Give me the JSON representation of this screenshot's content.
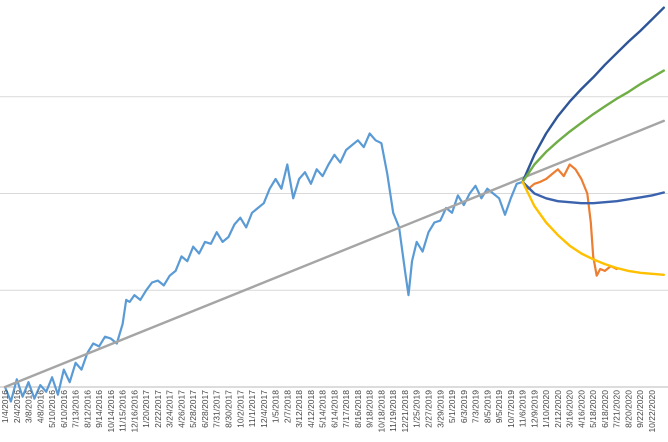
{
  "chart_data": {
    "type": "line",
    "title": "",
    "xlabel": "",
    "ylabel": "",
    "grid": true,
    "legend": "none",
    "x_tick_labels": [
      "1/4/2016",
      "2/4/2016",
      "3/8/2016",
      "4/8/2016",
      "5/10/2016",
      "6/10/2016",
      "7/13/2016",
      "8/12/2016",
      "9/14/2016",
      "10/14/2016",
      "11/15/2016",
      "12/16/2016",
      "1/20/2017",
      "2/22/2017",
      "3/24/2017",
      "4/26/2017",
      "5/28/2017",
      "6/28/2017",
      "7/31/2017",
      "8/30/2017",
      "10/2/2017",
      "11/1/2017",
      "12/4/2017",
      "1/5/2018",
      "2/7/2018",
      "3/12/2018",
      "4/12/2018",
      "5/14/2018",
      "6/14/2018",
      "7/17/2018",
      "8/16/2018",
      "9/18/2018",
      "10/18/2018",
      "11/19/2018",
      "12/21/2018",
      "1/25/2019",
      "2/27/2019",
      "3/29/2019",
      "5/1/2019",
      "6/3/2019",
      "7/3/2019",
      "8/5/2019",
      "9/5/2019",
      "10/7/2019",
      "11/6/2019",
      "12/9/2019",
      "1/10/2020",
      "2/12/2020",
      "3/16/2020",
      "4/16/2020",
      "5/18/2020",
      "6/18/2020",
      "7/21/2020",
      "8/20/2020",
      "9/22/2020",
      "10/22/2020"
    ],
    "ylim": [
      0,
      400
    ],
    "gridlines_y": [
      0,
      100,
      200,
      300
    ],
    "series": [
      {
        "color": "#5b9bd5",
        "points": [
          [
            0,
            0
          ],
          [
            0.5,
            -15
          ],
          [
            1,
            8
          ],
          [
            1.5,
            -10
          ],
          [
            2,
            5
          ],
          [
            2.5,
            -12
          ],
          [
            3,
            2
          ],
          [
            3.5,
            -5
          ],
          [
            4,
            10
          ],
          [
            4.5,
            -8
          ],
          [
            5,
            18
          ],
          [
            5.5,
            5
          ],
          [
            6,
            25
          ],
          [
            6.5,
            18
          ],
          [
            7,
            35
          ],
          [
            7.5,
            45
          ],
          [
            8,
            42
          ],
          [
            8.5,
            52
          ],
          [
            9,
            50
          ],
          [
            9.5,
            45
          ],
          [
            10,
            65
          ],
          [
            10.3,
            90
          ],
          [
            10.6,
            88
          ],
          [
            11,
            95
          ],
          [
            11.5,
            90
          ],
          [
            12,
            100
          ],
          [
            12.5,
            108
          ],
          [
            13,
            110
          ],
          [
            13.5,
            105
          ],
          [
            14,
            115
          ],
          [
            14.5,
            120
          ],
          [
            15,
            135
          ],
          [
            15.5,
            130
          ],
          [
            16,
            145
          ],
          [
            16.5,
            138
          ],
          [
            17,
            150
          ],
          [
            17.5,
            148
          ],
          [
            18,
            160
          ],
          [
            18.5,
            150
          ],
          [
            19,
            155
          ],
          [
            19.5,
            168
          ],
          [
            20,
            175
          ],
          [
            20.5,
            165
          ],
          [
            21,
            180
          ],
          [
            21.5,
            185
          ],
          [
            22,
            190
          ],
          [
            22.5,
            205
          ],
          [
            23,
            215
          ],
          [
            23.5,
            205
          ],
          [
            24,
            230
          ],
          [
            24.5,
            195
          ],
          [
            25,
            215
          ],
          [
            25.5,
            222
          ],
          [
            26,
            210
          ],
          [
            26.5,
            225
          ],
          [
            27,
            218
          ],
          [
            27.5,
            230
          ],
          [
            28,
            240
          ],
          [
            28.5,
            232
          ],
          [
            29,
            245
          ],
          [
            29.5,
            250
          ],
          [
            30,
            255
          ],
          [
            30.5,
            248
          ],
          [
            31,
            262
          ],
          [
            31.5,
            255
          ],
          [
            32,
            252
          ],
          [
            32.5,
            220
          ],
          [
            33,
            180
          ],
          [
            33.5,
            165
          ],
          [
            34,
            120
          ],
          [
            34.3,
            95
          ],
          [
            34.6,
            130
          ],
          [
            35,
            150
          ],
          [
            35.5,
            140
          ],
          [
            36,
            160
          ],
          [
            36.5,
            170
          ],
          [
            37,
            172
          ],
          [
            37.5,
            185
          ],
          [
            38,
            180
          ],
          [
            38.5,
            198
          ],
          [
            39,
            188
          ],
          [
            39.5,
            200
          ],
          [
            40,
            208
          ],
          [
            40.5,
            195
          ],
          [
            41,
            205
          ],
          [
            41.5,
            200
          ],
          [
            42,
            195
          ],
          [
            42.5,
            178
          ],
          [
            43,
            195
          ],
          [
            43.5,
            210
          ],
          [
            44,
            212
          ]
        ]
      },
      {
        "color": "#ed7d31",
        "points": [
          [
            44,
            212
          ],
          [
            44.5,
            205
          ],
          [
            45,
            210
          ],
          [
            45.5,
            212
          ],
          [
            46,
            215
          ],
          [
            46.5,
            220
          ],
          [
            47,
            225
          ],
          [
            47.5,
            218
          ],
          [
            48,
            230
          ],
          [
            48.5,
            225
          ],
          [
            49,
            215
          ],
          [
            49.5,
            200
          ],
          [
            49.8,
            170
          ],
          [
            50,
            135
          ],
          [
            50.3,
            115
          ],
          [
            50.6,
            122
          ],
          [
            51,
            120
          ],
          [
            51.5,
            125
          ],
          [
            52,
            122
          ]
        ]
      },
      {
        "color": "#a5a5a5",
        "points": [
          [
            0,
            0
          ],
          [
            56,
            275
          ]
        ]
      },
      {
        "color": "#2e5597",
        "points": [
          [
            44,
            212
          ],
          [
            45,
            240
          ],
          [
            46,
            262
          ],
          [
            47,
            280
          ],
          [
            48,
            295
          ],
          [
            49,
            308
          ],
          [
            50,
            320
          ],
          [
            51,
            333
          ],
          [
            52,
            345
          ],
          [
            53,
            357
          ],
          [
            54,
            368
          ],
          [
            55,
            380
          ],
          [
            56,
            392
          ]
        ]
      },
      {
        "color": "#70ad47",
        "points": [
          [
            44,
            212
          ],
          [
            45,
            230
          ],
          [
            46,
            243
          ],
          [
            47,
            254
          ],
          [
            48,
            264
          ],
          [
            49,
            273
          ],
          [
            50,
            282
          ],
          [
            51,
            290
          ],
          [
            52,
            298
          ],
          [
            53,
            305
          ],
          [
            54,
            313
          ],
          [
            55,
            320
          ],
          [
            56,
            327
          ]
        ]
      },
      {
        "color": "#3b62ad",
        "points": [
          [
            44,
            212
          ],
          [
            45,
            200
          ],
          [
            46,
            195
          ],
          [
            47,
            192
          ],
          [
            48,
            191
          ],
          [
            49,
            190
          ],
          [
            50,
            190
          ],
          [
            51,
            191
          ],
          [
            52,
            192
          ],
          [
            53,
            194
          ],
          [
            54,
            196
          ],
          [
            55,
            198
          ],
          [
            56,
            201
          ]
        ]
      },
      {
        "color": "#ffc000",
        "points": [
          [
            44,
            212
          ],
          [
            45,
            187
          ],
          [
            46,
            170
          ],
          [
            47,
            157
          ],
          [
            48,
            146
          ],
          [
            49,
            138
          ],
          [
            50,
            132
          ],
          [
            51,
            127
          ],
          [
            52,
            123
          ],
          [
            53,
            120
          ],
          [
            54,
            118
          ],
          [
            55,
            117
          ],
          [
            56,
            116
          ]
        ]
      }
    ]
  }
}
